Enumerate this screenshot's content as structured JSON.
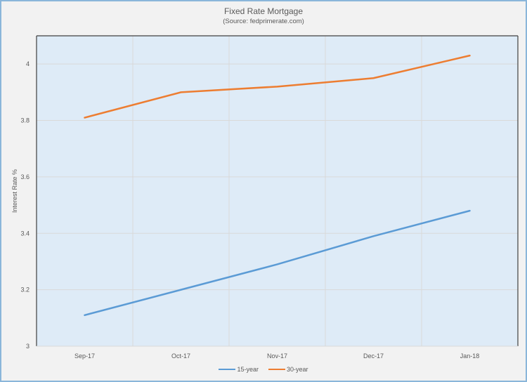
{
  "chart_data": {
    "type": "line",
    "title": "Fixed Rate Mortgage",
    "subtitle": "(Source:  fedprimerate.com)",
    "xlabel": "",
    "ylabel": "Interest Rate %",
    "categories": [
      "Sep-17",
      "Oct-17",
      "Nov-17",
      "Dec-17",
      "Jan-18"
    ],
    "series": [
      {
        "name": "15-year",
        "color": "#5b9bd5",
        "values": [
          3.11,
          3.2,
          3.29,
          3.39,
          3.48
        ]
      },
      {
        "name": "30-year",
        "color": "#ed7d31",
        "values": [
          3.81,
          3.9,
          3.92,
          3.95,
          4.03
        ]
      }
    ],
    "ylim": [
      3,
      4.1
    ],
    "yticks": [
      3,
      3.2,
      3.4,
      3.6,
      3.8,
      4
    ],
    "ytick_labels": [
      "3",
      "3.2",
      "3.4",
      "3.6",
      "3.8",
      "4"
    ],
    "grid": true,
    "legend_position": "bottom",
    "plot_background": "#deebf7"
  }
}
